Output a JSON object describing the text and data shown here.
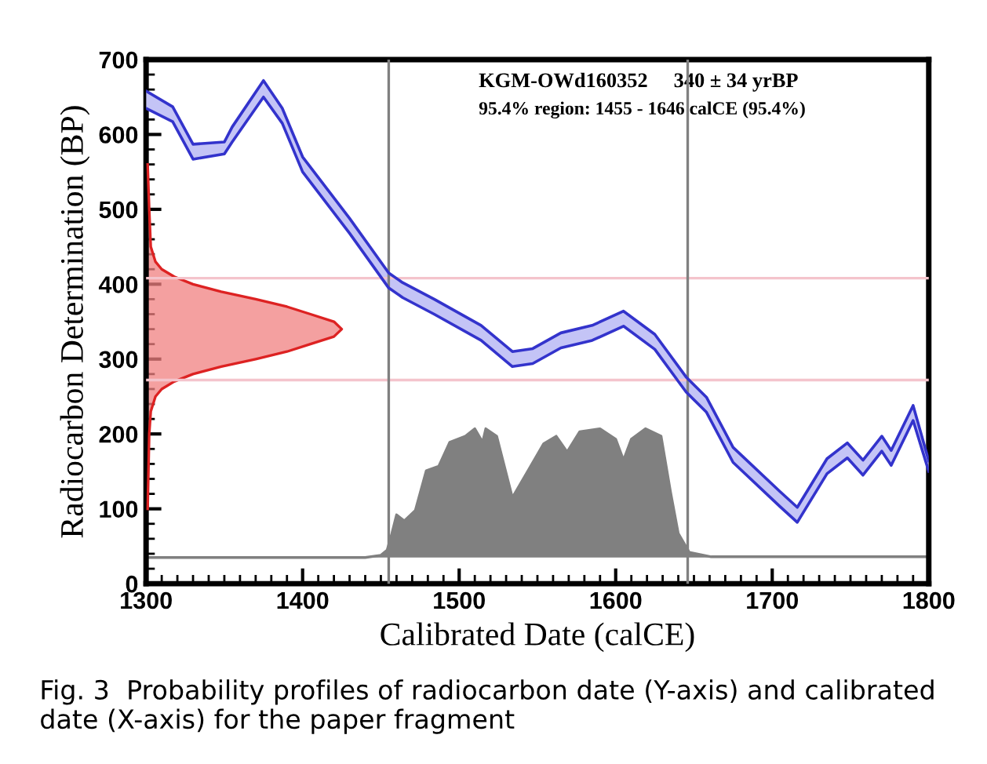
{
  "chart_data": {
    "type": "line",
    "xlabel": "Calibrated Date (calCE)",
    "ylabel": "Radiocarbon Determination (BP)",
    "xlim": [
      1300,
      1800
    ],
    "xticks": [
      1300,
      1400,
      1500,
      1600,
      1700,
      1800
    ],
    "ylim": [
      0,
      700
    ],
    "yticks": [
      0,
      100,
      200,
      300,
      400,
      500,
      600,
      700
    ],
    "grid": false,
    "annotations": [
      "KGM-OWd160352     340 ± 34 yrBP",
      "95.4% region: 1455 - 1646 calCE (95.4%)",
      "Fig. 3  Probability profiles of radiocarbon date (Y-axis) and calibrated date (X-axis) for the paper fragment"
    ],
    "ref_lines": [
      {
        "axis": "y",
        "value": 408,
        "color": "#f4c4cc"
      },
      {
        "axis": "y",
        "value": 272,
        "color": "#f4c4cc"
      },
      {
        "axis": "x",
        "value": 1455,
        "color": "#808080"
      },
      {
        "axis": "x",
        "value": 1646,
        "color": "#808080"
      }
    ],
    "series": [
      {
        "type": "area",
        "color": "#808080",
        "x": [
          1300,
          1440,
          1450,
          1454,
          1457,
          1460,
          1465,
          1472,
          1479,
          1487,
          1494,
          1504,
          1510,
          1515,
          1517,
          1524,
          1534,
          1544,
          1554,
          1562,
          1569,
          1577,
          1590,
          1600,
          1605,
          1610,
          1619,
          1629,
          1635,
          1640,
          1647,
          1661,
          1800
        ],
        "values": [
          35,
          35,
          38,
          45,
          67,
          92,
          84,
          98,
          151,
          157,
          189,
          197,
          207,
          189,
          207,
          197,
          115,
          151,
          187,
          197,
          176,
          203,
          207,
          193,
          165,
          193,
          207,
          197,
          123,
          67,
          42,
          36,
          36
        ]
      },
      {
        "type": "area",
        "color": "#f08080",
        "values": [
          100,
          200,
          230,
          250,
          260,
          270,
          280,
          290,
          300,
          310,
          320,
          330,
          340,
          350,
          360,
          370,
          380,
          390,
          400,
          410,
          420,
          430,
          450,
          500,
          560
        ],
        "x": [
          1301,
          1302,
          1303,
          1306,
          1310,
          1318,
          1330,
          1348,
          1370,
          1390,
          1405,
          1420,
          1425,
          1420,
          1405,
          1390,
          1370,
          1348,
          1330,
          1318,
          1310,
          1306,
          1303,
          1302,
          1301
        ]
      },
      {
        "color": "#3333cc",
        "x": [
          1300,
          1317,
          1330,
          1350,
          1355,
          1375,
          1387,
          1400,
          1430,
          1455,
          1464,
          1484,
          1514,
          1534,
          1547,
          1565,
          1585,
          1605,
          1625,
          1645,
          1658,
          1675,
          1705,
          1716,
          1735,
          1748,
          1758,
          1770,
          1776,
          1790,
          1800
        ],
        "values": [
          658,
          637,
          587,
          590,
          610,
          672,
          635,
          570,
          488,
          415,
          402,
          380,
          345,
          310,
          314,
          335,
          345,
          364,
          333,
          276,
          249,
          182,
          123,
          102,
          167,
          188,
          165,
          197,
          178,
          238,
          164
        ],
        "lower": [
          635,
          617,
          567,
          574,
          590,
          650,
          615,
          550,
          468,
          395,
          382,
          360,
          325,
          290,
          294,
          315,
          325,
          344,
          313,
          256,
          229,
          162,
          103,
          82,
          147,
          168,
          145,
          177,
          158,
          218,
          150
        ],
        "upper": [
          658,
          637,
          587,
          590,
          610,
          672,
          635,
          570,
          488,
          415,
          402,
          380,
          345,
          310,
          314,
          335,
          345,
          364,
          333,
          276,
          249,
          182,
          123,
          102,
          167,
          188,
          165,
          197,
          178,
          238,
          164
        ]
      },
      {
        "color": "#3333cc",
        "x": [
          1300,
          1317,
          1330,
          1350,
          1355,
          1375,
          1387,
          1400,
          1430,
          1455,
          1464,
          1484,
          1514,
          1534,
          1547,
          1565,
          1585,
          1605,
          1625,
          1645,
          1658,
          1675,
          1705,
          1716,
          1735,
          1748,
          1758,
          1770,
          1776,
          1790,
          1800
        ],
        "values": [
          635,
          617,
          567,
          574,
          590,
          650,
          615,
          550,
          468,
          395,
          382,
          360,
          325,
          290,
          294,
          315,
          325,
          344,
          313,
          256,
          229,
          162,
          103,
          82,
          147,
          168,
          145,
          177,
          158,
          218,
          150
        ]
      }
    ]
  }
}
